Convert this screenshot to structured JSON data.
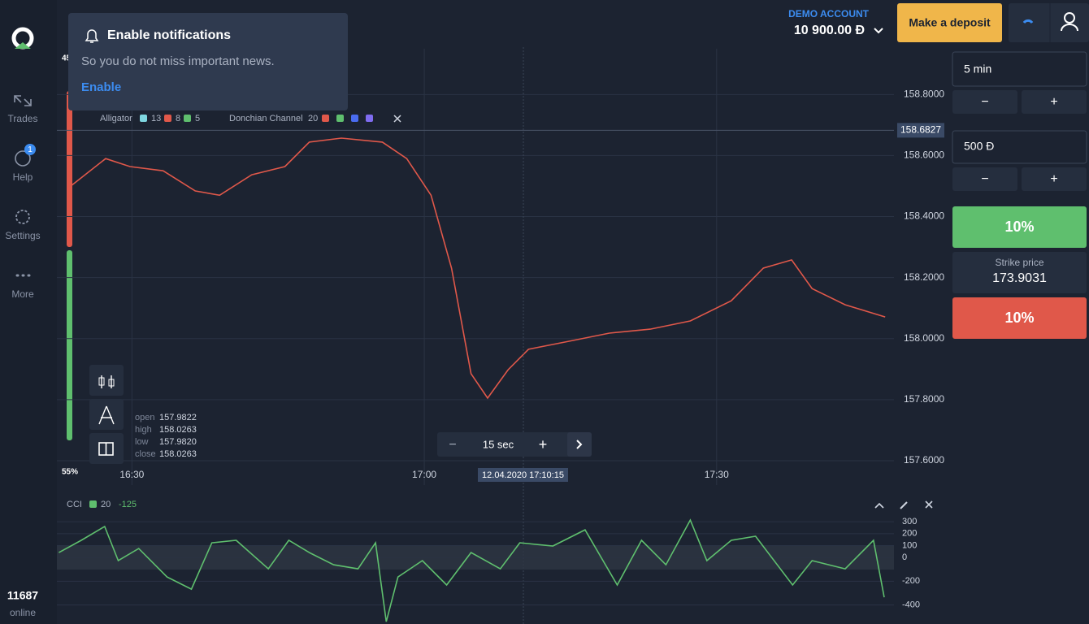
{
  "sidebar": {
    "items": [
      "Trades",
      "Help",
      "Settings",
      "More"
    ],
    "help_badge": "1",
    "online_count": "11687",
    "online_label": "online"
  },
  "notification": {
    "title": "Enable notifications",
    "text": "So you do not miss important news.",
    "action": "Enable"
  },
  "account": {
    "label": "DEMO ACCOUNT",
    "balance": "10 900.00 Đ",
    "deposit": "Make a deposit"
  },
  "trade_panel": {
    "time": "5 min",
    "amount": "500 Đ",
    "minus": "−",
    "plus": "+",
    "up_payout": "10%",
    "strike_label": "Strike price",
    "strike_price": "173.9031",
    "down_payout": "10%"
  },
  "sentiment": {
    "up": "45%",
    "down": "55%"
  },
  "indicators": {
    "alligator": "Alligator",
    "alligator_params": [
      "13",
      "8",
      "5"
    ],
    "donchian": "Donchian Channel",
    "donchian_param": "20"
  },
  "ohlc": [
    [
      "open",
      "157.9822"
    ],
    [
      "high",
      "158.0263"
    ],
    [
      "low",
      "157.9820"
    ],
    [
      "close",
      "158.0263"
    ]
  ],
  "timeframe": {
    "minus": "−",
    "value": "15 sec",
    "plus": "+"
  },
  "crosshair_time": "12.04.2020 17:10:15",
  "cci_header": {
    "name": "CCI",
    "period": "20",
    "value": "-125"
  },
  "chart_data": [
    {
      "type": "line",
      "color": "#e0584a",
      "x": [
        983.6,
        987.3,
        989.8,
        993.2,
        996.5,
        999,
        1002.3,
        1005.7,
        1008.2,
        1011.5,
        1015.7,
        1018.2,
        1020.7,
        1022.8,
        1024.8,
        1026.5,
        1028.6,
        1030.7,
        1034.8,
        1039,
        1043.2,
        1047.3,
        1051.5,
        1054.8,
        1057.7,
        1059.8,
        1063.2,
        1067.3
      ],
      "values": [
        158.497,
        158.59,
        158.564,
        158.55,
        158.484,
        158.47,
        158.537,
        158.564,
        158.644,
        158.657,
        158.644,
        158.59,
        158.47,
        158.231,
        157.885,
        157.805,
        157.898,
        157.965,
        157.991,
        158.018,
        158.031,
        158.058,
        158.124,
        158.231,
        158.258,
        158.164,
        158.111,
        158.071
      ],
      "xlim": [
        982.3,
        1068.2
      ],
      "xticks": [
        {
          "value": 990,
          "label": "16:30"
        },
        {
          "value": 1020,
          "label": "17:00"
        },
        {
          "value": 1050,
          "label": "17:30"
        }
      ],
      "ylim": [
        157.52,
        158.95
      ],
      "yticks": [
        {
          "value": 158.8,
          "label": "158.8000"
        },
        {
          "value": 158.6,
          "label": "158.6000"
        },
        {
          "value": 158.4,
          "label": "158.4000"
        },
        {
          "value": 158.2,
          "label": "158.2000"
        },
        {
          "value": 158.0,
          "label": "158.0000"
        },
        {
          "value": 157.8,
          "label": "157.8000"
        },
        {
          "value": 157.6,
          "label": "157.6000"
        }
      ],
      "current_price": 158.6827,
      "grid": true
    },
    {
      "type": "line",
      "color": "#5fbf6e",
      "x": [
        982.5,
        984.8,
        987.2,
        988.6,
        990.7,
        993.6,
        996.1,
        998.2,
        1000.7,
        1004,
        1006.1,
        1008.2,
        1010.7,
        1013.2,
        1015,
        1016.1,
        1017.3,
        1019.8,
        1022.3,
        1024.8,
        1027.8,
        1029.8,
        1033.2,
        1036.5,
        1039.8,
        1042.3,
        1044.8,
        1047.3,
        1049,
        1051.5,
        1054,
        1057.8,
        1059.8,
        1063.2,
        1066.1,
        1067.2
      ],
      "values": [
        41,
        144,
        260,
        -27,
        75,
        -164,
        -267,
        123,
        144,
        -96,
        144,
        41,
        -62,
        -96,
        123,
        -540,
        -164,
        -27,
        -232,
        41,
        -96,
        123,
        96,
        232,
        -232,
        144,
        -62,
        314,
        -27,
        144,
        178,
        -232,
        -27,
        -96,
        144,
        -335
      ],
      "xlim": [
        982.3,
        1068.2
      ],
      "ylim": [
        -560,
        520
      ],
      "yticks": [
        300,
        200,
        100,
        0,
        -200,
        -400
      ],
      "grid": true
    }
  ]
}
